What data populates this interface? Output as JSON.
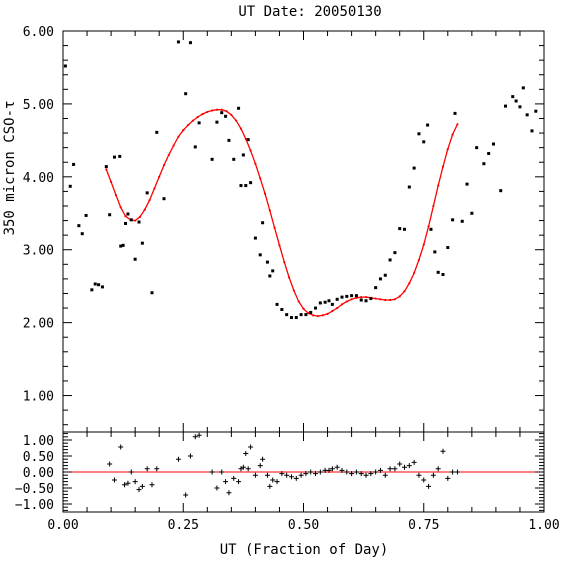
{
  "chart_data": [
    {
      "type": "scatter",
      "title": "UT Date: 20050130",
      "xlabel": "",
      "ylabel": "350 micron CSO-τ",
      "xlim": [
        0.0,
        1.0
      ],
      "ylim": [
        0.5,
        6.0
      ],
      "yticks": [
        1.0,
        2.0,
        3.0,
        4.0,
        5.0,
        6.0
      ],
      "ytick_labels": [
        "1.00",
        "2.00",
        "3.00",
        "4.00",
        "5.00",
        "6.00"
      ],
      "grid": false,
      "colors": {
        "points": "#000000",
        "fit": "#ff0000"
      },
      "series": [
        {
          "marker": "dot",
          "x": [
            0.005,
            0.015,
            0.022,
            0.033,
            0.04,
            0.048,
            0.06,
            0.067,
            0.074,
            0.082,
            0.09,
            0.097,
            0.107,
            0.118,
            0.12,
            0.125,
            0.13,
            0.135,
            0.142,
            0.15,
            0.158,
            0.165,
            0.175,
            0.185,
            0.195,
            0.21,
            0.24,
            0.255,
            0.265,
            0.275,
            0.283,
            0.31,
            0.32,
            0.33,
            0.338,
            0.345,
            0.355,
            0.365,
            0.37,
            0.375,
            0.38,
            0.385,
            0.39,
            0.4,
            0.41,
            0.415,
            0.425,
            0.43,
            0.436,
            0.445,
            0.455,
            0.465,
            0.475,
            0.485,
            0.495,
            0.505,
            0.515,
            0.525,
            0.535,
            0.545,
            0.553,
            0.56,
            0.57,
            0.58,
            0.59,
            0.6,
            0.61,
            0.62,
            0.63,
            0.64,
            0.65,
            0.66,
            0.67,
            0.68,
            0.69,
            0.7,
            0.71,
            0.72,
            0.73,
            0.74,
            0.75,
            0.758,
            0.765,
            0.773,
            0.78,
            0.79,
            0.8,
            0.81,
            0.815,
            0.83,
            0.84,
            0.85,
            0.86,
            0.875,
            0.885,
            0.895,
            0.91,
            0.92,
            0.935,
            0.942,
            0.95,
            0.957,
            0.965,
            0.975,
            0.983
          ],
          "y": [
            5.52,
            3.87,
            4.17,
            3.33,
            3.22,
            3.47,
            2.45,
            2.53,
            2.52,
            2.49,
            4.14,
            3.48,
            4.27,
            4.28,
            3.05,
            3.06,
            3.36,
            3.49,
            3.41,
            2.87,
            3.38,
            3.09,
            3.78,
            2.41,
            4.61,
            3.7,
            5.85,
            5.14,
            5.84,
            4.41,
            4.74,
            4.24,
            4.75,
            4.88,
            4.83,
            4.5,
            4.24,
            4.94,
            3.88,
            4.3,
            3.88,
            4.51,
            3.92,
            3.16,
            2.93,
            3.37,
            2.83,
            2.64,
            2.71,
            2.25,
            2.18,
            2.11,
            2.07,
            2.07,
            2.11,
            2.11,
            2.14,
            2.2,
            2.27,
            2.28,
            2.3,
            2.25,
            2.32,
            2.35,
            2.36,
            2.37,
            2.37,
            2.31,
            2.3,
            2.33,
            2.48,
            2.6,
            2.65,
            2.86,
            2.96,
            3.29,
            3.28,
            3.86,
            4.12,
            4.59,
            4.48,
            4.71,
            3.28,
            2.97,
            2.69,
            2.66,
            3.03,
            3.41,
            4.87,
            3.39,
            3.9,
            3.5,
            4.4,
            4.18,
            4.32,
            4.45,
            3.81,
            4.97,
            5.1,
            5.04,
            4.96,
            5.22,
            4.85,
            4.63,
            4.9
          ]
        },
        {
          "marker": "line",
          "x": [
            0.09,
            0.1,
            0.11,
            0.12,
            0.13,
            0.14,
            0.15,
            0.16,
            0.17,
            0.18,
            0.19,
            0.2,
            0.21,
            0.22,
            0.23,
            0.24,
            0.25,
            0.26,
            0.27,
            0.28,
            0.29,
            0.3,
            0.31,
            0.32,
            0.33,
            0.34,
            0.35,
            0.36,
            0.37,
            0.38,
            0.39,
            0.4,
            0.41,
            0.42,
            0.43,
            0.44,
            0.45,
            0.46,
            0.47,
            0.48,
            0.49,
            0.5,
            0.51,
            0.52,
            0.53,
            0.54,
            0.55,
            0.56,
            0.57,
            0.58,
            0.59,
            0.6,
            0.61,
            0.62,
            0.63,
            0.64,
            0.65,
            0.66,
            0.67,
            0.68,
            0.69,
            0.7,
            0.71,
            0.72,
            0.73,
            0.74,
            0.75,
            0.76,
            0.77,
            0.78,
            0.79,
            0.8,
            0.81,
            0.82
          ],
          "y": [
            4.1,
            3.93,
            3.75,
            3.58,
            3.46,
            3.41,
            3.4,
            3.45,
            3.55,
            3.68,
            3.84,
            4.0,
            4.16,
            4.3,
            4.43,
            4.55,
            4.64,
            4.71,
            4.77,
            4.82,
            4.86,
            4.89,
            4.91,
            4.92,
            4.92,
            4.9,
            4.85,
            4.77,
            4.66,
            4.52,
            4.36,
            4.18,
            3.98,
            3.77,
            3.54,
            3.3,
            3.06,
            2.83,
            2.62,
            2.44,
            2.29,
            2.19,
            2.13,
            2.1,
            2.09,
            2.1,
            2.12,
            2.16,
            2.2,
            2.25,
            2.29,
            2.32,
            2.34,
            2.35,
            2.35,
            2.34,
            2.33,
            2.32,
            2.31,
            2.31,
            2.32,
            2.36,
            2.43,
            2.54,
            2.68,
            2.86,
            3.07,
            3.32,
            3.6,
            3.88,
            4.14,
            4.38,
            4.58,
            4.72
          ]
        }
      ]
    },
    {
      "type": "scatter",
      "xlabel": "UT (Fraction of Day)",
      "ylabel": "",
      "xlim": [
        0.0,
        1.0
      ],
      "ylim": [
        -1.25,
        1.25
      ],
      "xticks": [
        0.0,
        0.25,
        0.5,
        0.75,
        1.0
      ],
      "xtick_labels": [
        "0.00",
        "0.25",
        "0.50",
        "0.75",
        "1.00"
      ],
      "yticks": [
        -1.0,
        -0.5,
        0.0,
        0.5,
        1.0
      ],
      "ytick_labels": [
        "−1.00",
        "−0.50",
        "0.00",
        "0.50",
        "1.00"
      ],
      "grid": false,
      "colors": {
        "points": "#000000",
        "zero_line": "#ff0000"
      },
      "series": [
        {
          "marker": "plus",
          "x": [
            0.097,
            0.107,
            0.12,
            0.128,
            0.135,
            0.142,
            0.15,
            0.158,
            0.165,
            0.175,
            0.185,
            0.195,
            0.24,
            0.255,
            0.265,
            0.275,
            0.283,
            0.31,
            0.32,
            0.33,
            0.338,
            0.345,
            0.355,
            0.365,
            0.37,
            0.375,
            0.38,
            0.385,
            0.39,
            0.4,
            0.41,
            0.415,
            0.425,
            0.43,
            0.436,
            0.445,
            0.455,
            0.465,
            0.475,
            0.485,
            0.495,
            0.505,
            0.515,
            0.525,
            0.535,
            0.545,
            0.553,
            0.56,
            0.57,
            0.58,
            0.59,
            0.6,
            0.61,
            0.62,
            0.63,
            0.64,
            0.65,
            0.66,
            0.67,
            0.68,
            0.69,
            0.7,
            0.71,
            0.72,
            0.73,
            0.74,
            0.75,
            0.76,
            0.77,
            0.78,
            0.79,
            0.8,
            0.81,
            0.82
          ],
          "y": [
            0.25,
            -0.25,
            0.78,
            -0.4,
            -0.35,
            0.0,
            -0.3,
            -0.55,
            -0.45,
            0.1,
            -0.4,
            0.1,
            0.4,
            -0.72,
            0.5,
            1.1,
            1.15,
            0.0,
            -0.5,
            0.0,
            -0.3,
            -0.65,
            -0.2,
            -0.3,
            0.1,
            0.15,
            0.58,
            0.1,
            0.78,
            -0.1,
            0.2,
            0.4,
            -0.1,
            -0.45,
            -0.25,
            -0.3,
            -0.05,
            -0.1,
            -0.15,
            -0.2,
            -0.1,
            -0.05,
            0.0,
            -0.05,
            0.0,
            0.05,
            0.05,
            0.1,
            0.15,
            0.05,
            0.0,
            -0.05,
            0.0,
            -0.05,
            -0.1,
            -0.05,
            0.0,
            0.05,
            -0.1,
            0.1,
            0.1,
            0.25,
            0.15,
            0.2,
            0.3,
            -0.1,
            -0.25,
            -0.45,
            -0.1,
            0.1,
            0.65,
            -0.2,
            0.0,
            0.0
          ]
        },
        {
          "marker": "hline",
          "y": 0.0
        }
      ]
    }
  ]
}
